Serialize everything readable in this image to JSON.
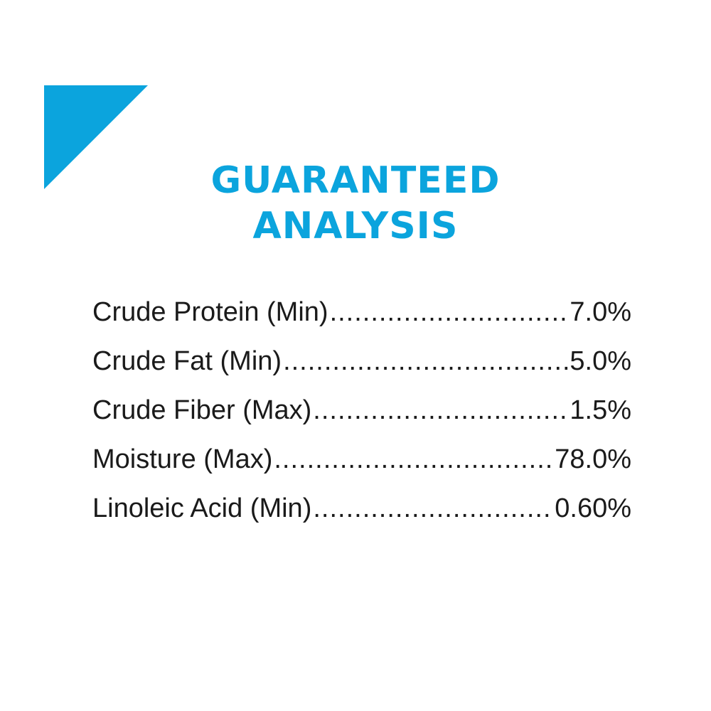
{
  "title": {
    "line1": "GUARANTEED",
    "line2": "ANALYSIS"
  },
  "accent_color": "#0ba4dd",
  "rows": [
    {
      "label": "Crude Protein (Min)",
      "value": "7.0%"
    },
    {
      "label": "Crude Fat (Min)",
      "value": "5.0%"
    },
    {
      "label": "Crude Fiber (Max)",
      "value": "1.5%"
    },
    {
      "label": "Moisture (Max)",
      "value": "78.0%"
    },
    {
      "label": "Linoleic Acid (Min)",
      "value": "0.60%"
    }
  ]
}
